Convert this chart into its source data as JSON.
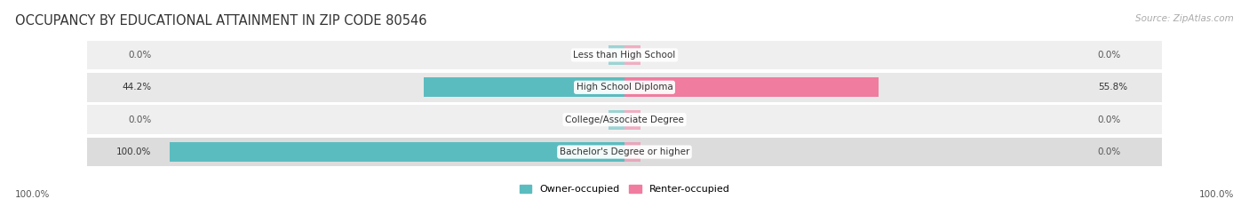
{
  "title": "OCCUPANCY BY EDUCATIONAL ATTAINMENT IN ZIP CODE 80546",
  "source": "Source: ZipAtlas.com",
  "categories": [
    "Less than High School",
    "High School Diploma",
    "College/Associate Degree",
    "Bachelor's Degree or higher"
  ],
  "owner_values": [
    0.0,
    44.2,
    0.0,
    100.0
  ],
  "renter_values": [
    0.0,
    55.8,
    0.0,
    0.0
  ],
  "owner_color": "#5bbcbf",
  "renter_color": "#f07ca0",
  "row_bg_colors": [
    "#efefef",
    "#e8e8e8",
    "#efefef",
    "#dcdcdc"
  ],
  "title_fontsize": 10.5,
  "source_fontsize": 7.5,
  "label_fontsize": 7.5,
  "cat_fontsize": 7.5,
  "legend_fontsize": 8,
  "max_value": 100.0,
  "stub_size": 3.5,
  "bottom_left_label": "100.0%",
  "bottom_right_label": "100.0%",
  "figsize": [
    14.06,
    2.33
  ],
  "dpi": 100
}
